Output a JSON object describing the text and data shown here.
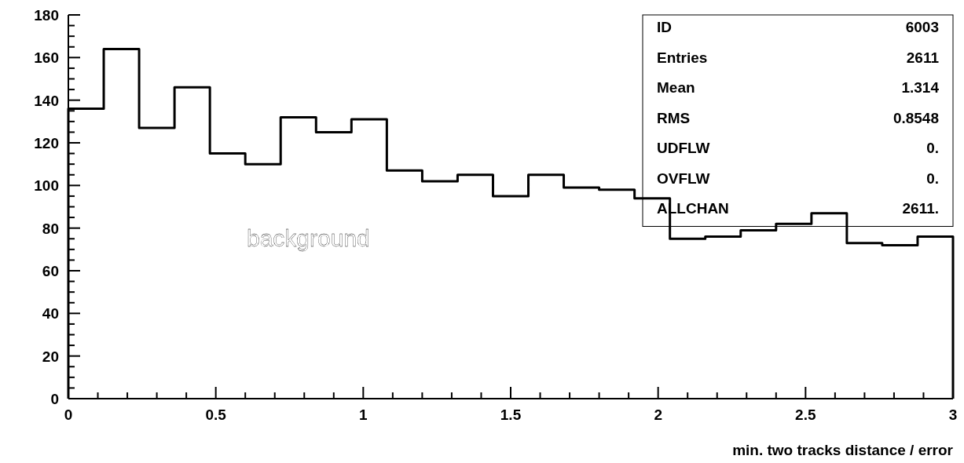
{
  "chart_data": {
    "type": "histogram",
    "xlabel": "min. two tracks distance / error",
    "bins": [
      0,
      0.12,
      0.24,
      0.36,
      0.48,
      0.6,
      0.72,
      0.84,
      0.96,
      1.08,
      1.2,
      1.32,
      1.44,
      1.56,
      1.68,
      1.8,
      1.92,
      2.04,
      2.16,
      2.28,
      2.4,
      2.52,
      2.64,
      2.76,
      2.88,
      3
    ],
    "values": [
      136,
      164,
      127,
      146,
      115,
      110,
      132,
      125,
      131,
      107,
      102,
      105,
      95,
      105,
      99,
      98,
      94,
      75,
      76,
      79,
      82,
      87,
      73,
      72,
      76
    ],
    "color": "#000000",
    "xlim": [
      0,
      3
    ],
    "xticks": [
      0,
      {
        "value": 0.1,
        "label": null
      },
      {
        "value": 0.2,
        "label": null
      },
      {
        "value": 0.3,
        "label": null
      },
      {
        "value": 0.4,
        "label": null
      },
      0.5,
      {
        "value": 0.6,
        "label": null
      },
      {
        "value": 0.7,
        "label": null
      },
      {
        "value": 0.8,
        "label": null
      },
      {
        "value": 0.9,
        "label": null
      },
      1,
      {
        "value": 1.1,
        "label": null
      },
      {
        "value": 1.2,
        "label": null
      },
      {
        "value": 1.3,
        "label": null
      },
      {
        "value": 1.4,
        "label": null
      },
      1.5,
      {
        "value": 1.6,
        "label": null
      },
      {
        "value": 1.7,
        "label": null
      },
      {
        "value": 1.8,
        "label": null
      },
      {
        "value": 1.9,
        "label": null
      },
      2,
      {
        "value": 2.1,
        "label": null
      },
      {
        "value": 2.2,
        "label": null
      },
      {
        "value": 2.3,
        "label": null
      },
      {
        "value": 2.4,
        "label": null
      },
      2.5,
      {
        "value": 2.6,
        "label": null
      },
      {
        "value": 2.7,
        "label": null
      },
      {
        "value": 2.8,
        "label": null
      },
      {
        "value": 2.9,
        "label": null
      },
      3
    ],
    "ylim": [
      0,
      180
    ],
    "yticks": [
      0,
      {
        "value": 5,
        "label": null
      },
      {
        "value": 10,
        "label": null
      },
      {
        "value": 15,
        "label": null
      },
      20,
      {
        "value": 25,
        "label": null
      },
      {
        "value": 30,
        "label": null
      },
      {
        "value": 35,
        "label": null
      },
      40,
      {
        "value": 45,
        "label": null
      },
      {
        "value": 50,
        "label": null
      },
      {
        "value": 55,
        "label": null
      },
      60,
      {
        "value": 65,
        "label": null
      },
      {
        "value": 70,
        "label": null
      },
      {
        "value": 75,
        "label": null
      },
      80,
      {
        "value": 85,
        "label": null
      },
      {
        "value": 90,
        "label": null
      },
      {
        "value": 95,
        "label": null
      },
      100,
      {
        "value": 105,
        "label": null
      },
      {
        "value": 110,
        "label": null
      },
      {
        "value": 115,
        "label": null
      },
      120,
      {
        "value": 125,
        "label": null
      },
      {
        "value": 130,
        "label": null
      },
      {
        "value": 135,
        "label": null
      },
      140,
      {
        "value": 145,
        "label": null
      },
      {
        "value": 150,
        "label": null
      },
      {
        "value": 155,
        "label": null
      },
      160,
      {
        "value": 165,
        "label": null
      },
      {
        "value": 170,
        "label": null
      },
      {
        "value": 175,
        "label": null
      },
      180
    ],
    "annotations": [
      "background",
      "ID",
      "6003",
      "Entries",
      "2611",
      "Mean",
      "1.314",
      "RMS",
      "0.8548",
      "UDFLW",
      "0.",
      "OVFLW",
      "0.",
      "ALLCHAN",
      "2611."
    ]
  }
}
